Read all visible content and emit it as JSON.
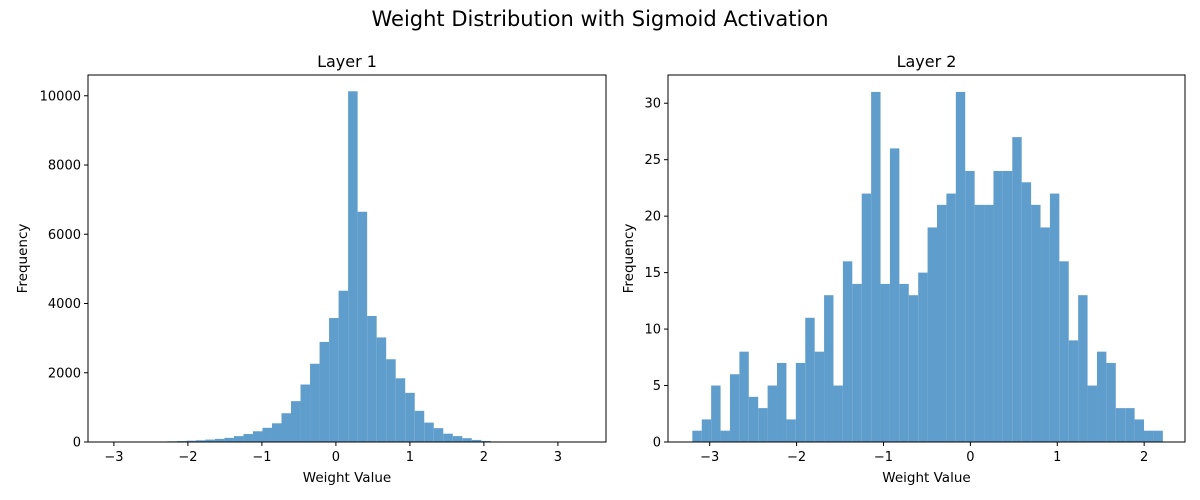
{
  "figure": {
    "title": "Weight Distribution with Sigmoid Activation",
    "bar_color": "#5f9dcc"
  },
  "chart_data": [
    {
      "type": "bar",
      "title": "Layer 1",
      "xlabel": "Weight Value",
      "ylabel": "Frequency",
      "xlim": [
        -3.35,
        3.65
      ],
      "ylim": [
        0,
        10600
      ],
      "xticks": [
        -3,
        -2,
        -1,
        0,
        1,
        2,
        3
      ],
      "xtick_labels": [
        "−3",
        "−2",
        "−1",
        "0",
        "1",
        "2",
        "3"
      ],
      "yticks": [
        0,
        2000,
        4000,
        6000,
        8000,
        10000
      ],
      "ytick_labels": [
        "0",
        "2000",
        "4000",
        "6000",
        "8000",
        "10000"
      ],
      "bin_start": -3.05,
      "bin_width": 0.1286,
      "values": [
        2,
        3,
        5,
        8,
        10,
        15,
        20,
        28,
        38,
        50,
        70,
        90,
        120,
        170,
        230,
        310,
        410,
        540,
        830,
        1180,
        1660,
        2260,
        2890,
        3580,
        4370,
        10130,
        6650,
        3640,
        3020,
        2390,
        1840,
        1420,
        900,
        560,
        400,
        240,
        170,
        110,
        60,
        30,
        15,
        8,
        4,
        2,
        1,
        1,
        0,
        0,
        0,
        0,
        1,
        1
      ]
    },
    {
      "type": "bar",
      "title": "Layer 2",
      "xlabel": "Weight Value",
      "ylabel": "Frequency",
      "xlim": [
        -3.48,
        2.47
      ],
      "ylim": [
        0,
        32.5
      ],
      "xticks": [
        -3,
        -2,
        -1,
        0,
        1,
        2
      ],
      "xtick_labels": [
        "−3",
        "−2",
        "−1",
        "0",
        "1",
        "2"
      ],
      "yticks": [
        0,
        5,
        10,
        15,
        20,
        25,
        30
      ],
      "ytick_labels": [
        "0",
        "5",
        "10",
        "15",
        "20",
        "25",
        "30"
      ],
      "bin_start": -3.2,
      "bin_width": 0.1083,
      "values": [
        1,
        2,
        5,
        1,
        6,
        8,
        4,
        3,
        5,
        7,
        2,
        7,
        11,
        8,
        13,
        5,
        16,
        14,
        22,
        31,
        14,
        26,
        14,
        13,
        15,
        19,
        21,
        22,
        31,
        24,
        21,
        21,
        24,
        24,
        27,
        23,
        21,
        19,
        22,
        16,
        9,
        13,
        5,
        8,
        7,
        3,
        3,
        2,
        1,
        1
      ]
    }
  ]
}
